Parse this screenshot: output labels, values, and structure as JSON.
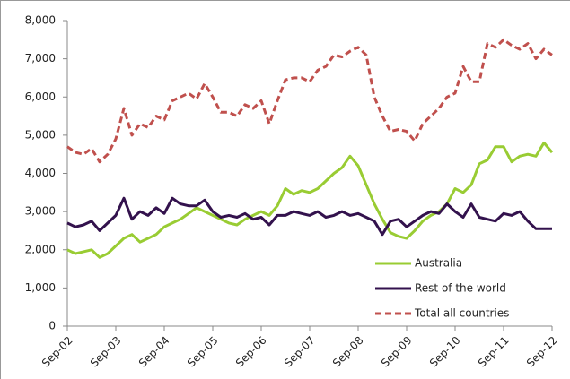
{
  "chart_data": {
    "type": "line",
    "categories": [
      "Sep-02",
      null,
      null,
      null,
      null,
      null,
      "Sep-03",
      null,
      null,
      null,
      null,
      null,
      "Sep-04",
      null,
      null,
      null,
      null,
      null,
      "Sep-05",
      null,
      null,
      null,
      null,
      null,
      "Sep-06",
      null,
      null,
      null,
      null,
      null,
      "Sep-07",
      null,
      null,
      null,
      null,
      null,
      "Sep-08",
      null,
      null,
      null,
      null,
      null,
      "Sep-09",
      null,
      null,
      null,
      null,
      null,
      "Sep-10",
      null,
      null,
      null,
      null,
      null,
      "Sep-11",
      null,
      null,
      null,
      null,
      null,
      "Sep-12"
    ],
    "series": [
      {
        "name": "Australia",
        "color": "#99cc33",
        "dashed": false,
        "values": [
          2000,
          1900,
          1950,
          2000,
          1800,
          1900,
          2100,
          2300,
          2400,
          2200,
          2300,
          2400,
          2600,
          2700,
          2800,
          2950,
          3100,
          3000,
          2900,
          2800,
          2700,
          2650,
          2800,
          2900,
          3000,
          2900,
          3150,
          3600,
          3450,
          3550,
          3500,
          3600,
          3800,
          4000,
          4150,
          4450,
          4200,
          3700,
          3200,
          2800,
          2450,
          2350,
          2300,
          2500,
          2750,
          2900,
          3000,
          3200,
          3600,
          3500,
          3700,
          4250,
          4350,
          4700,
          4700,
          4300,
          4450,
          4500,
          4450,
          4800,
          4550
        ]
      },
      {
        "name": "Rest of the world",
        "color": "#33124d",
        "dashed": false,
        "values": [
          2700,
          2600,
          2650,
          2750,
          2500,
          2700,
          2900,
          3350,
          2800,
          3000,
          2900,
          3100,
          2950,
          3350,
          3200,
          3150,
          3150,
          3300,
          3000,
          2850,
          2900,
          2850,
          2950,
          2800,
          2850,
          2650,
          2900,
          2900,
          3000,
          2950,
          2900,
          3000,
          2850,
          2900,
          3000,
          2900,
          2950,
          2850,
          2750,
          2400,
          2750,
          2800,
          2600,
          2750,
          2900,
          3000,
          2950,
          3200,
          3000,
          2850,
          3200,
          2850,
          2800,
          2750,
          2950,
          2900,
          3000,
          2750,
          2550,
          2550,
          2550
        ]
      },
      {
        "name": "Total all countries",
        "color": "#c0504d",
        "dashed": true,
        "values": [
          4700,
          4550,
          4500,
          4650,
          4300,
          4500,
          4900,
          5700,
          5000,
          5300,
          5200,
          5500,
          5400,
          5900,
          6000,
          6100,
          5950,
          6350,
          6000,
          5600,
          5600,
          5500,
          5800,
          5700,
          5900,
          5300,
          5900,
          6450,
          6500,
          6500,
          6400,
          6700,
          6800,
          7100,
          7050,
          7200,
          7300,
          7100,
          6000,
          5500,
          5100,
          5150,
          5100,
          4850,
          5300,
          5500,
          5700,
          6000,
          6100,
          6800,
          6400,
          6400,
          7400,
          7300,
          7500,
          7350,
          7250,
          7400,
          7000,
          7250,
          7100
        ]
      }
    ],
    "ylim": [
      0,
      8000
    ],
    "yticks": [
      0,
      {
        "value": 1000,
        "label": "1,000"
      },
      {
        "value": 2000,
        "label": "2,000"
      },
      {
        "value": 3000,
        "label": "3,000"
      },
      {
        "value": 4000,
        "label": "4,000"
      },
      {
        "value": 5000,
        "label": "5,000"
      },
      {
        "value": 6000,
        "label": "6,000"
      },
      {
        "value": 7000,
        "label": "7,000"
      },
      {
        "value": 8000,
        "label": "8,000"
      }
    ],
    "legend": "lower right",
    "grid": false
  }
}
